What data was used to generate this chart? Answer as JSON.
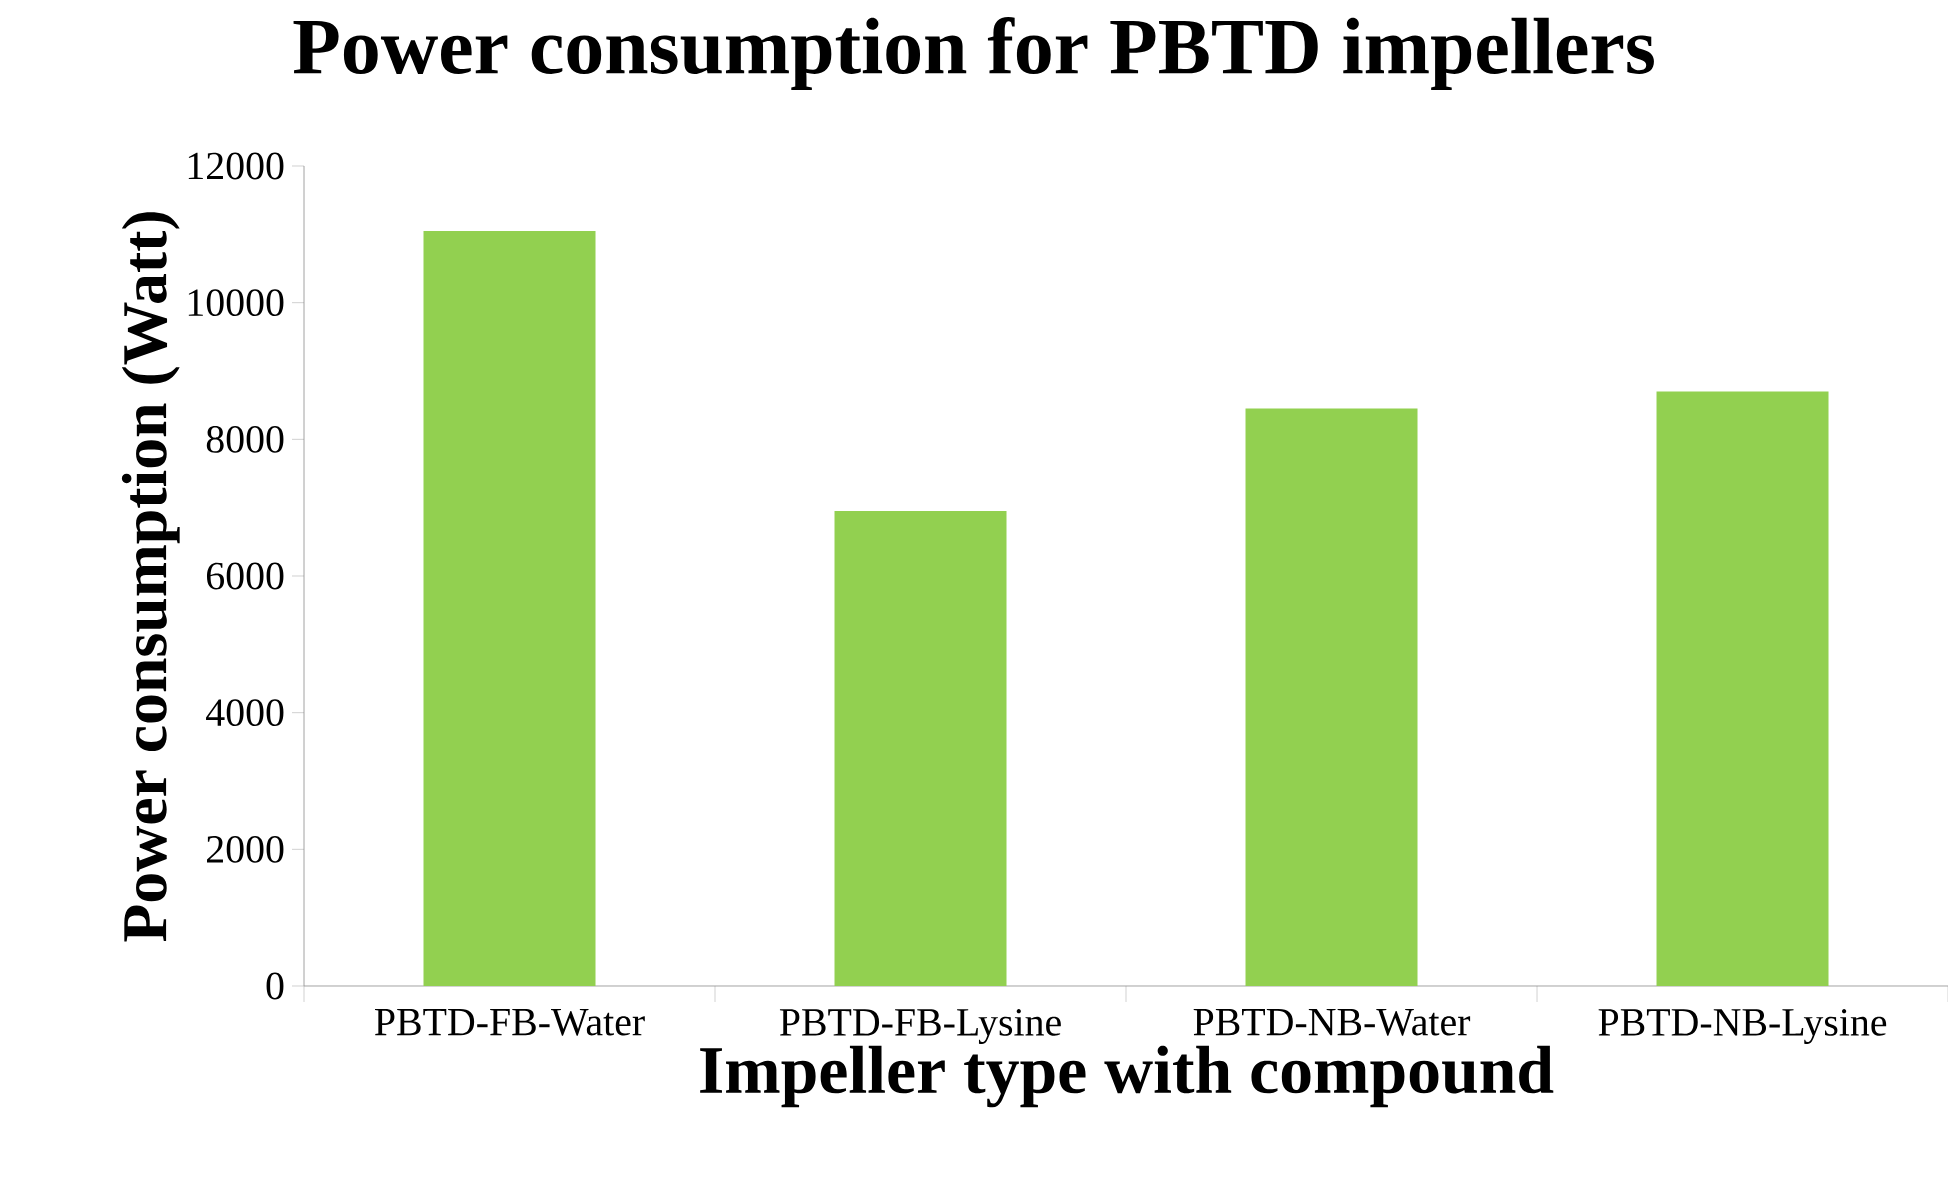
{
  "chart_data": {
    "type": "bar",
    "title": "Power consumption  for PBTD impellers",
    "xlabel": "Impeller type with compound",
    "ylabel": "Power consumption (Watt)",
    "categories": [
      "PBTD-FB-Water",
      "PBTD-FB-Lysine",
      "PBTD-NB-Water",
      "PBTD-NB-Lysine"
    ],
    "values": [
      11050,
      6950,
      8450,
      8700
    ],
    "color": "#92d050",
    "ylim": [
      0,
      12000
    ],
    "yticks": [
      0,
      2000,
      4000,
      6000,
      8000,
      10000,
      12000
    ],
    "grid": false
  }
}
